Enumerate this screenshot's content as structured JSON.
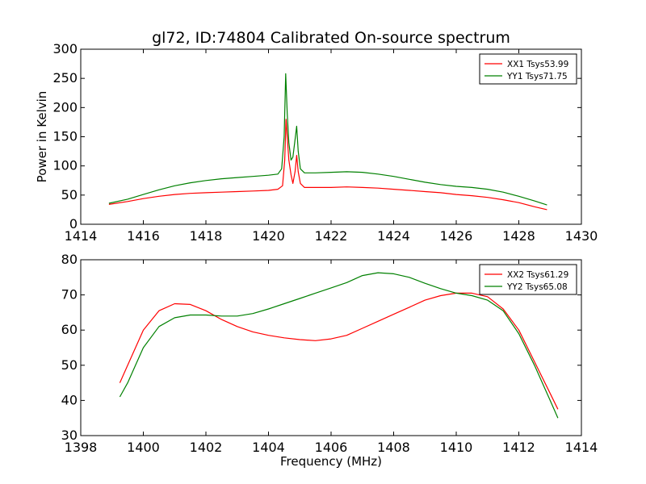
{
  "chart_data": [
    {
      "type": "line",
      "title": "gl72, ID:74804 Calibrated On-source spectrum",
      "xlabel": "",
      "ylabel": "Power in Kelvin",
      "xlim": [
        1414,
        1430
      ],
      "ylim": [
        0,
        300
      ],
      "xticks": [
        1414,
        1416,
        1418,
        1420,
        1422,
        1424,
        1426,
        1428,
        1430
      ],
      "yticks": [
        0,
        50,
        100,
        150,
        200,
        250,
        300
      ],
      "grid": false,
      "legend_position": "top-right",
      "series": [
        {
          "name": "XX1 Tsys53.99",
          "color": "#ff0000",
          "points": [
            [
              1414.9,
              34
            ],
            [
              1415.5,
              39
            ],
            [
              1416,
              44
            ],
            [
              1416.5,
              48
            ],
            [
              1417,
              51
            ],
            [
              1417.5,
              53
            ],
            [
              1418,
              54
            ],
            [
              1418.5,
              55
            ],
            [
              1419,
              56
            ],
            [
              1419.5,
              57
            ],
            [
              1420,
              58
            ],
            [
              1420.3,
              60
            ],
            [
              1420.45,
              66
            ],
            [
              1420.52,
              110
            ],
            [
              1420.56,
              180
            ],
            [
              1420.6,
              150
            ],
            [
              1420.65,
              110
            ],
            [
              1420.72,
              85
            ],
            [
              1420.78,
              70
            ],
            [
              1420.85,
              90
            ],
            [
              1420.9,
              118
            ],
            [
              1420.95,
              90
            ],
            [
              1421.02,
              70
            ],
            [
              1421.15,
              63
            ],
            [
              1421.5,
              63
            ],
            [
              1422,
              63
            ],
            [
              1422.5,
              64
            ],
            [
              1423,
              63
            ],
            [
              1423.5,
              62
            ],
            [
              1424,
              60
            ],
            [
              1424.5,
              58
            ],
            [
              1425,
              56
            ],
            [
              1425.5,
              54
            ],
            [
              1426,
              51
            ],
            [
              1426.5,
              49
            ],
            [
              1427,
              46
            ],
            [
              1427.5,
              42
            ],
            [
              1428,
              37
            ],
            [
              1428.5,
              30
            ],
            [
              1428.9,
              25
            ]
          ]
        },
        {
          "name": "YY1 Tsys71.75",
          "color": "#008000",
          "points": [
            [
              1414.9,
              36
            ],
            [
              1415.5,
              43
            ],
            [
              1416,
              51
            ],
            [
              1416.5,
              59
            ],
            [
              1417,
              66
            ],
            [
              1417.5,
              71
            ],
            [
              1418,
              75
            ],
            [
              1418.5,
              78
            ],
            [
              1419,
              80
            ],
            [
              1419.5,
              82
            ],
            [
              1420,
              84
            ],
            [
              1420.3,
              86
            ],
            [
              1420.42,
              95
            ],
            [
              1420.5,
              150
            ],
            [
              1420.55,
              258
            ],
            [
              1420.6,
              190
            ],
            [
              1420.65,
              140
            ],
            [
              1420.72,
              110
            ],
            [
              1420.78,
              115
            ],
            [
              1420.85,
              145
            ],
            [
              1420.9,
              168
            ],
            [
              1420.95,
              125
            ],
            [
              1421.02,
              95
            ],
            [
              1421.15,
              88
            ],
            [
              1421.5,
              88
            ],
            [
              1422,
              89
            ],
            [
              1422.5,
              90
            ],
            [
              1423,
              89
            ],
            [
              1423.5,
              86
            ],
            [
              1424,
              82
            ],
            [
              1424.5,
              77
            ],
            [
              1425,
              72
            ],
            [
              1425.5,
              68
            ],
            [
              1426,
              65
            ],
            [
              1426.5,
              63
            ],
            [
              1427,
              60
            ],
            [
              1427.5,
              55
            ],
            [
              1428,
              48
            ],
            [
              1428.5,
              40
            ],
            [
              1428.9,
              33
            ]
          ]
        }
      ]
    },
    {
      "type": "line",
      "title": "",
      "xlabel": "Frequency (MHz)",
      "ylabel": "",
      "xlim": [
        1398,
        1414
      ],
      "ylim": [
        30,
        80
      ],
      "xticks": [
        1398,
        1400,
        1402,
        1404,
        1406,
        1408,
        1410,
        1412,
        1414
      ],
      "yticks": [
        30,
        40,
        50,
        60,
        70,
        80
      ],
      "grid": false,
      "legend_position": "top-right",
      "series": [
        {
          "name": "XX2 Tsys61.29",
          "color": "#ff0000",
          "points": [
            [
              1399.25,
              45
            ],
            [
              1399.5,
              50
            ],
            [
              1399.75,
              55
            ],
            [
              1400,
              60
            ],
            [
              1400.5,
              65.5
            ],
            [
              1401,
              67.5
            ],
            [
              1401.5,
              67.3
            ],
            [
              1402,
              65.5
            ],
            [
              1402.5,
              63
            ],
            [
              1403,
              61
            ],
            [
              1403.5,
              59.5
            ],
            [
              1404,
              58.5
            ],
            [
              1404.5,
              57.8
            ],
            [
              1405,
              57.3
            ],
            [
              1405.5,
              57
            ],
            [
              1406,
              57.5
            ],
            [
              1406.5,
              58.5
            ],
            [
              1407,
              60.5
            ],
            [
              1407.5,
              62.5
            ],
            [
              1408,
              64.5
            ],
            [
              1408.5,
              66.5
            ],
            [
              1409,
              68.5
            ],
            [
              1409.5,
              69.8
            ],
            [
              1410,
              70.5
            ],
            [
              1410.5,
              70.5
            ],
            [
              1411,
              69.5
            ],
            [
              1411.5,
              66
            ],
            [
              1412,
              60
            ],
            [
              1412.5,
              51
            ],
            [
              1413,
              42
            ],
            [
              1413.25,
              37.5
            ]
          ]
        },
        {
          "name": "YY2 Tsys65.08",
          "color": "#008000",
          "points": [
            [
              1399.25,
              41
            ],
            [
              1399.5,
              45
            ],
            [
              1399.75,
              50
            ],
            [
              1400,
              55
            ],
            [
              1400.5,
              61
            ],
            [
              1401,
              63.5
            ],
            [
              1401.5,
              64.3
            ],
            [
              1402,
              64.3
            ],
            [
              1402.5,
              64
            ],
            [
              1403,
              64
            ],
            [
              1403.5,
              64.7
            ],
            [
              1404,
              66
            ],
            [
              1404.5,
              67.5
            ],
            [
              1405,
              69
            ],
            [
              1405.5,
              70.5
            ],
            [
              1406,
              72
            ],
            [
              1406.5,
              73.5
            ],
            [
              1407,
              75.5
            ],
            [
              1407.5,
              76.3
            ],
            [
              1408,
              76
            ],
            [
              1408.5,
              75
            ],
            [
              1409,
              73.3
            ],
            [
              1409.5,
              71.8
            ],
            [
              1410,
              70.5
            ],
            [
              1410.5,
              69.8
            ],
            [
              1411,
              68.5
            ],
            [
              1411.5,
              65.5
            ],
            [
              1412,
              59
            ],
            [
              1412.5,
              50
            ],
            [
              1413,
              40
            ],
            [
              1413.25,
              35
            ]
          ]
        }
      ]
    }
  ]
}
